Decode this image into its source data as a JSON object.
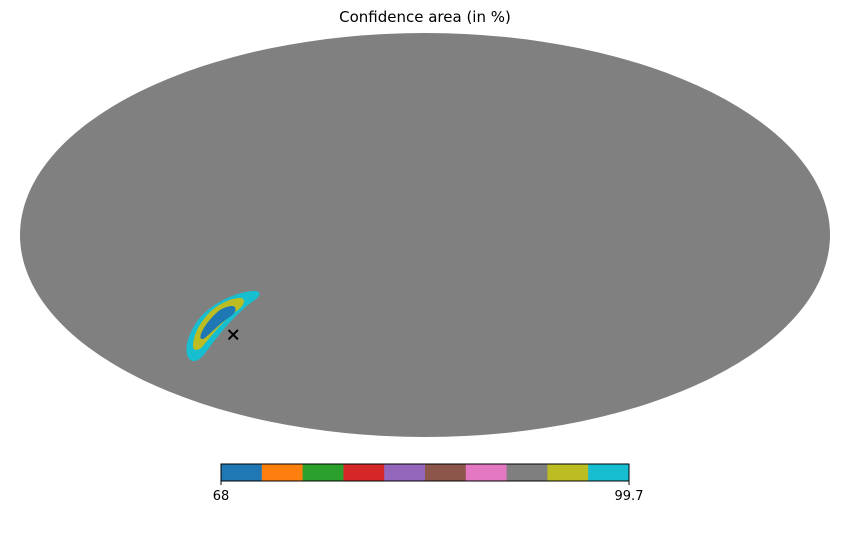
{
  "chart_data": {
    "type": "heatmap",
    "projection": "mollweide",
    "title": "Confidence area (in %)",
    "background_color": "#808080",
    "marker": {
      "symbol": "x",
      "color": "#000000",
      "lon_deg": -98,
      "lat_deg": -37
    },
    "regions": [
      {
        "level": 68,
        "color": "#1f77b4"
      },
      {
        "level": 95,
        "color": "#bcbd22"
      },
      {
        "level": 99.7,
        "color": "#17becf"
      }
    ],
    "colorbar": {
      "min": 68,
      "max": 99.7,
      "min_label": "68",
      "max_label": "99.7",
      "colors": [
        "#1f77b4",
        "#ff7f0e",
        "#2ca02c",
        "#d62728",
        "#9467bd",
        "#8c564b",
        "#e377c2",
        "#7f7f7f",
        "#bcbd22",
        "#17becf"
      ]
    }
  }
}
